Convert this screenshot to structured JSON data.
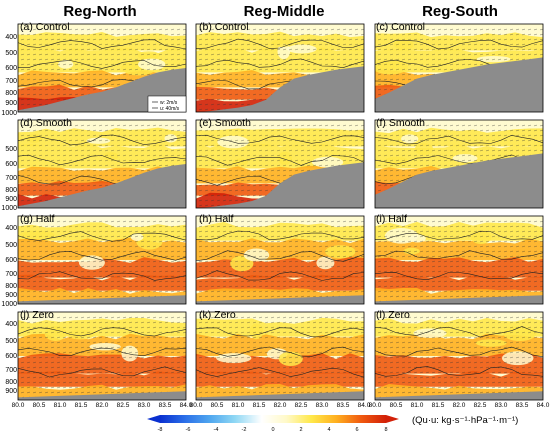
{
  "columns": [
    "Reg-North",
    "Reg-Middle",
    "Reg-South"
  ],
  "panels": [
    {
      "label": "(a) Control",
      "region": "Reg-North",
      "experiment": "Control"
    },
    {
      "label": "(b) Control",
      "region": "Reg-Middle",
      "experiment": "Control"
    },
    {
      "label": "(c) Control",
      "region": "Reg-South",
      "experiment": "Control"
    },
    {
      "label": "(d) Smooth",
      "region": "Reg-North",
      "experiment": "Smooth"
    },
    {
      "label": "(e) Smooth",
      "region": "Reg-Middle",
      "experiment": "Smooth"
    },
    {
      "label": "(f) Smooth",
      "region": "Reg-South",
      "experiment": "Smooth"
    },
    {
      "label": "(g) Half",
      "region": "Reg-North",
      "experiment": "Half"
    },
    {
      "label": "(h) Half",
      "region": "Reg-Middle",
      "experiment": "Half"
    },
    {
      "label": "(i) Half",
      "region": "Reg-South",
      "experiment": "Half"
    },
    {
      "label": "(j) Zero",
      "region": "Reg-North",
      "experiment": "Zero"
    },
    {
      "label": "(k) Zero",
      "region": "Reg-Middle",
      "experiment": "Zero"
    },
    {
      "label": "(l) Zero",
      "region": "Reg-South",
      "experiment": "Zero"
    }
  ],
  "y_ticks": [
    "400",
    "500",
    "600",
    "700",
    "800",
    "900",
    "1000"
  ],
  "x_ticks": [
    "80.0",
    "80.5",
    "81.0",
    "81.5",
    "82.0",
    "82.5",
    "83.0",
    "83.5",
    "84.0"
  ],
  "legend": {
    "w_label": "w: 2m/s",
    "u_label": "u: 40m/s"
  },
  "colorbar": {
    "ticks": [
      "-8",
      "-6",
      "-4",
      "-2",
      "0",
      "2",
      "4",
      "6",
      "8"
    ],
    "label": "(Qu·u: kg·s⁻¹·hPa⁻¹·m⁻¹)",
    "colors": [
      "#0a30d0",
      "#2b6fe8",
      "#4fa6ef",
      "#8ed7f4",
      "#ffffff",
      "#fff9c8",
      "#ffe84a",
      "#ffb020",
      "#f05a10",
      "#d22008"
    ]
  },
  "chart_data": {
    "type": "heatmap",
    "description_free": true,
    "x_range": [
      80.0,
      84.0
    ],
    "y_range": [
      1000,
      350
    ],
    "y_scale": "pressure",
    "terrain_fill": "#8c8c8c"
  }
}
